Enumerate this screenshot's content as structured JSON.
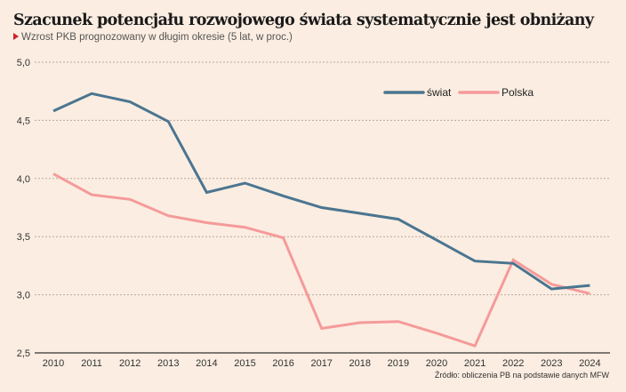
{
  "header": {
    "title": "Szacunek potencjału rozwojowego świata systematycznie jest obniżany",
    "subtitle": "Wzrost PKB prognozowany w długim okresie (5 lat, w proc.)"
  },
  "source": "Źródło: obliczenia PB na podstawie danych MFW",
  "colors": {
    "background": "#fbede1",
    "swiat": "#4a7590",
    "polska": "#f59a9a",
    "subtitle_marker": "#d0202a"
  },
  "chart_data": {
    "type": "line",
    "title": "Szacunek potencjału rozwojowego świata systematycznie jest obniżany",
    "subtitle": "Wzrost PKB prognozowany w długim okresie (5 lat, w proc.)",
    "xlabel": "",
    "ylabel": "",
    "x": [
      "2010",
      "2011",
      "2012",
      "2013",
      "2014",
      "2015",
      "2016",
      "2017",
      "2018",
      "2019",
      "2020",
      "2021",
      "2022",
      "2023",
      "2024"
    ],
    "ylim": [
      2.5,
      5.0
    ],
    "yticks": [
      5.0,
      4.5,
      4.0,
      3.5,
      3.0,
      2.5
    ],
    "ytick_labels": [
      "5,0",
      "4,5",
      "4,0",
      "3,5",
      "3,0",
      "2,5"
    ],
    "grid": "horizontal dashed",
    "legend_position": "top-right",
    "series": [
      {
        "name": "świat",
        "color": "#4a7590",
        "values": [
          4.58,
          4.73,
          4.66,
          4.49,
          3.88,
          3.96,
          3.85,
          3.75,
          3.7,
          3.65,
          3.47,
          3.29,
          3.27,
          3.05,
          3.08
        ]
      },
      {
        "name": "Polska",
        "color": "#f59a9a",
        "values": [
          4.04,
          3.86,
          3.82,
          3.68,
          3.62,
          3.58,
          3.49,
          2.71,
          2.76,
          2.77,
          2.67,
          2.56,
          3.3,
          3.09,
          3.01
        ]
      }
    ]
  }
}
